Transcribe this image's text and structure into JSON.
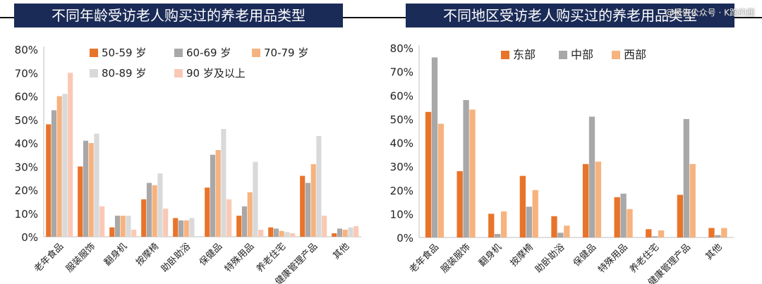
{
  "watermark": "@报告公众号 · K跑的鹿",
  "colors": {
    "title_bg": "#1b2b57",
    "age_series": [
      "#e8742a",
      "#a8a8a8",
      "#f6b37f",
      "#d9d9d9",
      "#f9c9b5"
    ],
    "region_series": [
      "#e8742a",
      "#a8a8a8",
      "#f6b37f"
    ]
  },
  "chart_data": [
    {
      "type": "bar",
      "title": "不同年龄受访老人购买过的养老用品类型",
      "categories": [
        "老年食品",
        "服装服饰",
        "翻身机",
        "按摩椅",
        "助卧助浴",
        "保健品",
        "特殊用品",
        "养老住宅",
        "健康管理产品",
        "其他"
      ],
      "series": [
        {
          "name": "50-59 岁",
          "values": [
            48,
            30,
            4,
            16,
            8,
            21,
            9,
            4,
            26,
            1.5
          ]
        },
        {
          "name": "60-69 岁",
          "values": [
            54,
            41,
            9,
            23,
            7,
            35,
            13,
            3.5,
            23,
            3.5
          ]
        },
        {
          "name": "70-79 岁",
          "values": [
            60,
            40,
            9,
            22,
            7,
            37,
            19,
            2.5,
            31,
            3
          ]
        },
        {
          "name": "80-89 岁",
          "values": [
            61,
            44,
            9,
            27,
            8,
            46,
            32,
            2,
            43,
            4
          ]
        },
        {
          "name": "90 岁及以上",
          "values": [
            70,
            13,
            3,
            12,
            0,
            16,
            3,
            1.5,
            9,
            4.5
          ]
        }
      ],
      "ylim": [
        0,
        80
      ],
      "yticks": [
        "0%",
        "10%",
        "20%",
        "30%",
        "40%",
        "50%",
        "60%",
        "70%",
        "80%"
      ],
      "legend": "top"
    },
    {
      "type": "bar",
      "title": "不同地区受访老人购买过的养老用品类型",
      "categories": [
        "老年食品",
        "服装服饰",
        "翻身机",
        "按摩椅",
        "助卧助浴",
        "保健品",
        "特殊用品",
        "养老住宅",
        "健康管理产品",
        "其他"
      ],
      "series": [
        {
          "name": "东部",
          "values": [
            53,
            28,
            10,
            26,
            9,
            31,
            17,
            3.5,
            18,
            4
          ]
        },
        {
          "name": "中部",
          "values": [
            76,
            58,
            1.5,
            13,
            2,
            51,
            18.5,
            0.5,
            50,
            1
          ]
        },
        {
          "name": "西部",
          "values": [
            48,
            54,
            11,
            20,
            5,
            32,
            12,
            3,
            31,
            4
          ]
        }
      ],
      "ylim": [
        0,
        80
      ],
      "yticks": [
        "0%",
        "10%",
        "20%",
        "30%",
        "40%",
        "50%",
        "60%",
        "70%",
        "80%"
      ],
      "legend": "top"
    }
  ]
}
